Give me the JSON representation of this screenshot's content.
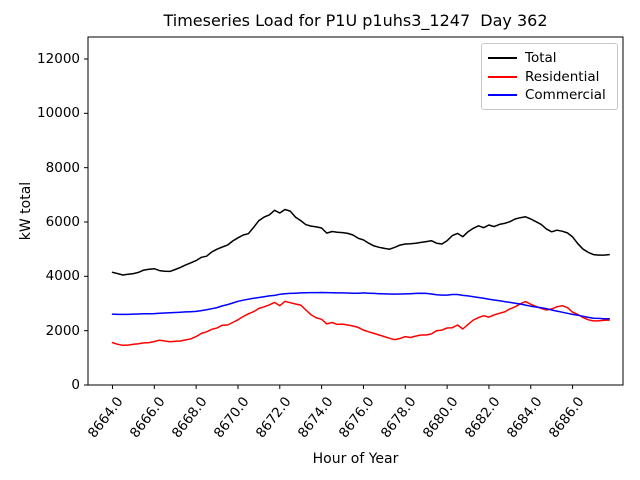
{
  "chart_data": {
    "type": "line",
    "title": "Timeseries Load for P1U p1uhs3_1247  Day 362",
    "xlabel": "Hour of Year",
    "ylabel": "kW total",
    "xlim": [
      8662.83,
      8688.41
    ],
    "ylim": [
      0,
      12810
    ],
    "grid": false,
    "legend_position": "upper right",
    "x_ticks": [
      8664,
      8666,
      8668,
      8670,
      8672,
      8674,
      8676,
      8678,
      8680,
      8682,
      8684,
      8686
    ],
    "x_tick_labels": [
      "8664.0",
      "8666.0",
      "8668.0",
      "8670.0",
      "8672.0",
      "8674.0",
      "8676.0",
      "8678.0",
      "8680.0",
      "8682.0",
      "8684.0",
      "8686.0"
    ],
    "y_ticks": [
      0,
      2000,
      4000,
      6000,
      8000,
      10000,
      12000
    ],
    "y_tick_labels": [
      "0",
      "2000",
      "4000",
      "6000",
      "8000",
      "10000",
      "12000"
    ],
    "x_start": 8664.0,
    "x_step": 0.25,
    "series": [
      {
        "name": "Total",
        "color": "#000000",
        "values": [
          4150,
          4100,
          4050,
          4080,
          4100,
          4150,
          4230,
          4260,
          4280,
          4210,
          4190,
          4180,
          4250,
          4330,
          4420,
          4500,
          4580,
          4700,
          4740,
          4900,
          5000,
          5080,
          5150,
          5300,
          5420,
          5520,
          5570,
          5800,
          6050,
          6180,
          6260,
          6430,
          6330,
          6460,
          6400,
          6180,
          6050,
          5900,
          5850,
          5820,
          5780,
          5590,
          5650,
          5620,
          5610,
          5580,
          5520,
          5400,
          5340,
          5220,
          5120,
          5070,
          5030,
          5000,
          5070,
          5150,
          5190,
          5200,
          5220,
          5250,
          5280,
          5310,
          5220,
          5190,
          5310,
          5500,
          5580,
          5460,
          5640,
          5770,
          5860,
          5790,
          5890,
          5830,
          5910,
          5950,
          6010,
          6110,
          6160,
          6190,
          6110,
          6010,
          5910,
          5740,
          5640,
          5700,
          5660,
          5600,
          5450,
          5200,
          5000,
          4880,
          4800,
          4780,
          4780,
          4800
        ]
      },
      {
        "name": "Residential",
        "color": "#ff0000",
        "values": [
          1560,
          1500,
          1460,
          1470,
          1500,
          1520,
          1550,
          1560,
          1600,
          1650,
          1620,
          1590,
          1610,
          1620,
          1660,
          1700,
          1780,
          1900,
          1960,
          2050,
          2100,
          2200,
          2210,
          2300,
          2400,
          2520,
          2620,
          2700,
          2820,
          2880,
          2950,
          3040,
          2920,
          3080,
          3030,
          2980,
          2940,
          2760,
          2580,
          2470,
          2420,
          2250,
          2300,
          2230,
          2240,
          2210,
          2170,
          2120,
          2020,
          1960,
          1900,
          1840,
          1780,
          1720,
          1670,
          1710,
          1780,
          1750,
          1800,
          1840,
          1840,
          1880,
          2000,
          2020,
          2100,
          2110,
          2210,
          2060,
          2230,
          2390,
          2480,
          2550,
          2500,
          2580,
          2640,
          2690,
          2800,
          2880,
          2990,
          3070,
          2970,
          2890,
          2820,
          2760,
          2800,
          2880,
          2920,
          2850,
          2680,
          2600,
          2480,
          2400,
          2360,
          2360,
          2380,
          2390
        ]
      },
      {
        "name": "Commercial",
        "color": "#0000ff",
        "values": [
          2610,
          2600,
          2600,
          2600,
          2610,
          2615,
          2620,
          2625,
          2630,
          2640,
          2650,
          2660,
          2670,
          2680,
          2690,
          2700,
          2710,
          2740,
          2770,
          2810,
          2850,
          2910,
          2960,
          3020,
          3080,
          3120,
          3160,
          3190,
          3220,
          3250,
          3280,
          3300,
          3340,
          3360,
          3370,
          3380,
          3390,
          3395,
          3400,
          3400,
          3405,
          3400,
          3395,
          3390,
          3390,
          3385,
          3380,
          3375,
          3390,
          3380,
          3370,
          3360,
          3355,
          3350,
          3345,
          3350,
          3355,
          3360,
          3370,
          3375,
          3370,
          3350,
          3320,
          3310,
          3310,
          3330,
          3330,
          3300,
          3280,
          3250,
          3220,
          3190,
          3160,
          3130,
          3100,
          3070,
          3040,
          3010,
          2980,
          2940,
          2900,
          2870,
          2840,
          2810,
          2760,
          2720,
          2680,
          2640,
          2600,
          2570,
          2530,
          2490,
          2460,
          2450,
          2440,
          2440
        ]
      }
    ]
  }
}
